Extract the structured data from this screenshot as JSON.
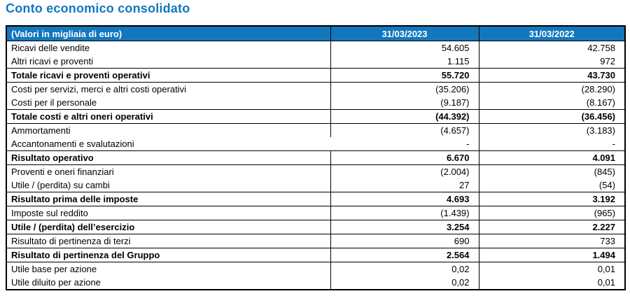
{
  "page_title": "Conto economico consolidato",
  "colors": {
    "accent_blue": "#1277BD",
    "header_text": "#FFFFFF",
    "border": "#000000",
    "body_text": "#000000"
  },
  "table": {
    "header": {
      "units_label": "(Valori in migliaia di euro)",
      "col_2023": "31/03/2023",
      "col_2022": "31/03/2022"
    },
    "rows": [
      {
        "label": "Ricavi delle vendite",
        "v2023": "54.605",
        "v2022": "42.758",
        "bold": false,
        "rule_below": false
      },
      {
        "label": "Altri ricavi e proventi",
        "v2023": "1.115",
        "v2022": "972",
        "bold": false,
        "rule_below": true
      },
      {
        "label": "Totale ricavi e proventi operativi",
        "v2023": "55.720",
        "v2022": "43.730",
        "bold": true,
        "rule_below": true
      },
      {
        "label": "Costi per servizi, merci e altri costi operativi",
        "v2023": "(35.206)",
        "v2022": "(28.290)",
        "bold": false,
        "rule_below": false
      },
      {
        "label": "Costi per il personale",
        "v2023": "(9.187)",
        "v2022": "(8.167)",
        "bold": false,
        "rule_below": true
      },
      {
        "label": "Totale costi e altri oneri operativi",
        "v2023": "(44.392)",
        "v2022": "(36.456)",
        "bold": true,
        "rule_below": true
      },
      {
        "label": "Ammortamenti",
        "v2023": "(4.657)",
        "v2022": "(3.183)",
        "bold": false,
        "rule_below": false
      },
      {
        "label": "Accantonamenti e svalutazioni",
        "v2023": "-",
        "v2022": "-",
        "bold": false,
        "rule_below": true,
        "no_left_divider": true
      },
      {
        "label": "Risultato operativo",
        "v2023": "6.670",
        "v2022": "4.091",
        "bold": true,
        "rule_below": true
      },
      {
        "label": "Proventi e oneri finanziari",
        "v2023": "(2.004)",
        "v2022": "(845)",
        "bold": false,
        "rule_below": false
      },
      {
        "label": "Utile / (perdita) su cambi",
        "v2023": "27",
        "v2022": "(54)",
        "bold": false,
        "rule_below": true
      },
      {
        "label": "Risultato prima delle imposte",
        "v2023": "4.693",
        "v2022": "3.192",
        "bold": true,
        "rule_below": true
      },
      {
        "label": "Imposte sul reddito",
        "v2023": "(1.439)",
        "v2022": "(965)",
        "bold": false,
        "rule_below": true
      },
      {
        "label": "Utile / (perdita) dell’esercizio",
        "v2023": "3.254",
        "v2022": "2.227",
        "bold": true,
        "rule_below": true
      },
      {
        "label": "Risultato di pertinenza di terzi",
        "v2023": "690",
        "v2022": "733",
        "bold": false,
        "rule_below": true
      },
      {
        "label": "Risultato di pertinenza del Gruppo",
        "v2023": "2.564",
        "v2022": "1.494",
        "bold": true,
        "rule_below": true
      },
      {
        "label": "Utile base per azione",
        "v2023": "0,02",
        "v2022": "0,01",
        "bold": false,
        "rule_below": false
      },
      {
        "label": "Utile diluito per azione",
        "v2023": "0,02",
        "v2022": "0,01",
        "bold": false,
        "rule_below": false
      }
    ]
  }
}
